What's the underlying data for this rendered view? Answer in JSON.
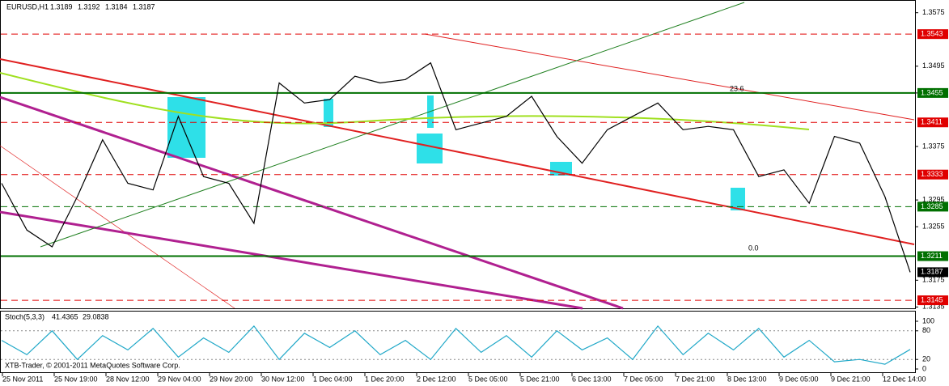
{
  "chart_data": {
    "type": "line",
    "symbol": "EURUSD,H1",
    "ohlc": [
      1.3189,
      1.3192,
      1.3184,
      1.3187
    ],
    "fib_labels": [
      "23.6",
      "0.0"
    ],
    "copyright": "XTB-Trader, © 2001-2011 MetaQuotes Software Corp.",
    "x_labels": [
      "25 Nov 2011",
      "25 Nov 19:00",
      "28 Nov 12:00",
      "29 Nov 04:00",
      "29 Nov 20:00",
      "30 Nov 12:00",
      "1 Dec 04:00",
      "1 Dec 20:00",
      "2 Dec 12:00",
      "5 Dec 05:00",
      "5 Dec 21:00",
      "6 Dec 13:00",
      "7 Dec 05:00",
      "7 Dec 21:00",
      "8 Dec 13:00",
      "9 Dec 05:00",
      "9 Dec 21:00",
      "12 Dec 14:00"
    ],
    "ylim": [
      1.3594,
      1.3133
    ],
    "yticks": [
      1.3575,
      1.3495,
      1.3455,
      1.3375,
      1.3295,
      1.3255,
      1.3175,
      1.3135
    ],
    "levels": [
      {
        "value": 1.3543,
        "color": "#e00000",
        "dashed": true
      },
      {
        "value": 1.3455,
        "color": "#007000",
        "dashed": false
      },
      {
        "value": 1.3411,
        "color": "#e00000",
        "dashed": true
      },
      {
        "value": 1.3333,
        "color": "#e00000",
        "dashed": true
      },
      {
        "value": 1.3285,
        "color": "#007000",
        "dashed": true
      },
      {
        "value": 1.3211,
        "color": "#007000",
        "dashed": false
      },
      {
        "value": 1.3145,
        "color": "#e00000",
        "dashed": true
      }
    ],
    "series": [
      {
        "name": "EURUSD",
        "color": "#000000",
        "values": [
          1.332,
          1.325,
          1.3225,
          1.33,
          1.3385,
          1.332,
          1.331,
          1.342,
          1.333,
          1.332,
          1.326,
          1.347,
          1.344,
          1.3445,
          1.348,
          1.347,
          1.3475,
          1.35,
          1.34,
          1.341,
          1.342,
          1.345,
          1.339,
          1.335,
          1.34,
          1.342,
          1.344,
          1.34,
          1.3405,
          1.34,
          1.333,
          1.334,
          1.329,
          1.339,
          1.338,
          1.33,
          1.3187
        ]
      },
      {
        "name": "Stoch(5,3,3)",
        "color": "#20a8c8",
        "axis": "y2",
        "values": [
          60,
          30,
          80,
          20,
          70,
          40,
          85,
          25,
          65,
          35,
          90,
          20,
          75,
          45,
          80,
          30,
          60,
          20,
          85,
          35,
          70,
          25,
          80,
          40,
          65,
          20,
          90,
          30,
          75,
          40,
          85,
          25,
          60,
          15,
          20,
          10,
          41
        ]
      }
    ],
    "stoch_values": [
      41.4365,
      29.0838
    ],
    "y2lim": [
      0,
      100
    ],
    "y2ticks": [
      100,
      80,
      20,
      0
    ]
  }
}
